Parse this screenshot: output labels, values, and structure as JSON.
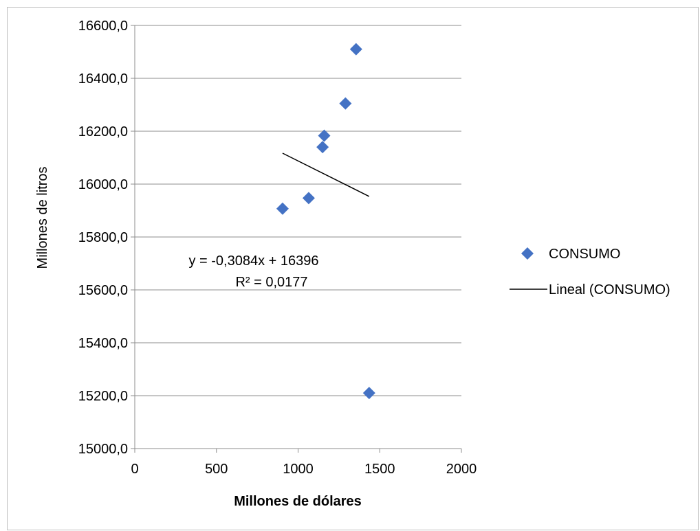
{
  "chart_data": {
    "type": "scatter",
    "title": "",
    "xlabel": "Millones de dólares",
    "ylabel": "Millones de litros",
    "xlim": [
      0,
      2000
    ],
    "ylim": [
      15000,
      16600
    ],
    "x_ticks": [
      "0",
      "500",
      "1000",
      "1500",
      "2000"
    ],
    "x_tick_values": [
      0,
      500,
      1000,
      1500,
      2000
    ],
    "y_ticks": [
      "15000,0",
      "15200,0",
      "15400,0",
      "15600,0",
      "15800,0",
      "16000,0",
      "16200,0",
      "16400,0",
      "16600,0"
    ],
    "y_tick_values": [
      15000,
      15200,
      15400,
      15600,
      15800,
      16000,
      16200,
      16400,
      16600
    ],
    "grid": "horizontal",
    "legend_position": "right",
    "series": [
      {
        "name": "CONSUMO",
        "marker": "diamond",
        "color": "#4472c4",
        "points": [
          {
            "x": 905,
            "y": 15907
          },
          {
            "x": 1065,
            "y": 15947
          },
          {
            "x": 1150,
            "y": 16140
          },
          {
            "x": 1160,
            "y": 16183
          },
          {
            "x": 1290,
            "y": 16305
          },
          {
            "x": 1355,
            "y": 16510
          },
          {
            "x": 1435,
            "y": 15210
          }
        ]
      }
    ],
    "trendline": {
      "name": "Lineal (CONSUMO)",
      "color": "#000000",
      "x_range": [
        905,
        1435
      ],
      "slope": -0.3084,
      "intercept": 16396,
      "equation": "y = -0,3084x + 16396",
      "r_squared": "R² = 0,0177"
    }
  }
}
